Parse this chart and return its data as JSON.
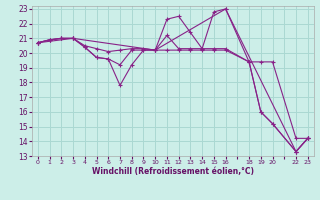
{
  "xlabel": "Windchill (Refroidissement éolien,°C)",
  "bg_color": "#cceee8",
  "grid_color": "#aad8d2",
  "line_color": "#882288",
  "xlim": [
    -0.5,
    23.5
  ],
  "ylim": [
    13,
    23.2
  ],
  "xtick_labels": [
    "0",
    "1",
    "2",
    "3",
    "4",
    "5",
    "6",
    "7",
    "8",
    "9",
    "10",
    "11",
    "12",
    "13",
    "14",
    "15",
    "16",
    "",
    "18",
    "19",
    "20",
    "",
    "22",
    "23"
  ],
  "xtick_pos": [
    0,
    1,
    2,
    3,
    4,
    5,
    6,
    7,
    8,
    9,
    10,
    11,
    12,
    13,
    14,
    15,
    16,
    17,
    18,
    19,
    20,
    21,
    22,
    23
  ],
  "yticks": [
    13,
    14,
    15,
    16,
    17,
    18,
    19,
    20,
    21,
    22,
    23
  ],
  "lines": [
    {
      "x": [
        0,
        1,
        2,
        3,
        4,
        5,
        6,
        7,
        8,
        9,
        10,
        11,
        12,
        13,
        14,
        15,
        16,
        18,
        19,
        20,
        22,
        23
      ],
      "y": [
        20.7,
        20.9,
        21.0,
        21.0,
        20.5,
        20.3,
        20.1,
        20.2,
        20.3,
        20.3,
        20.2,
        22.3,
        22.5,
        21.4,
        20.3,
        22.8,
        23.0,
        19.4,
        19.4,
        19.4,
        14.2,
        14.2
      ]
    },
    {
      "x": [
        0,
        1,
        2,
        3,
        4,
        5,
        6,
        7,
        8,
        9,
        10,
        11,
        12,
        13,
        14,
        15,
        16,
        18,
        19,
        20,
        22,
        23
      ],
      "y": [
        20.7,
        20.9,
        21.0,
        21.0,
        20.4,
        19.7,
        19.6,
        17.8,
        19.2,
        20.2,
        20.2,
        21.2,
        20.3,
        20.3,
        20.3,
        20.3,
        20.3,
        19.4,
        16.0,
        15.2,
        13.3,
        14.2
      ]
    },
    {
      "x": [
        0,
        1,
        2,
        3,
        4,
        5,
        6,
        7,
        8,
        9,
        10,
        11,
        12,
        13,
        14,
        15,
        16,
        18,
        19,
        20,
        22,
        23
      ],
      "y": [
        20.7,
        20.9,
        21.0,
        21.0,
        20.4,
        19.7,
        19.6,
        19.2,
        20.2,
        20.2,
        20.2,
        20.2,
        20.2,
        20.2,
        20.2,
        20.2,
        20.2,
        19.4,
        16.0,
        15.2,
        13.3,
        14.2
      ]
    },
    {
      "x": [
        0,
        3,
        10,
        16,
        22,
        23
      ],
      "y": [
        20.7,
        21.0,
        20.2,
        23.0,
        13.3,
        14.2
      ]
    }
  ]
}
